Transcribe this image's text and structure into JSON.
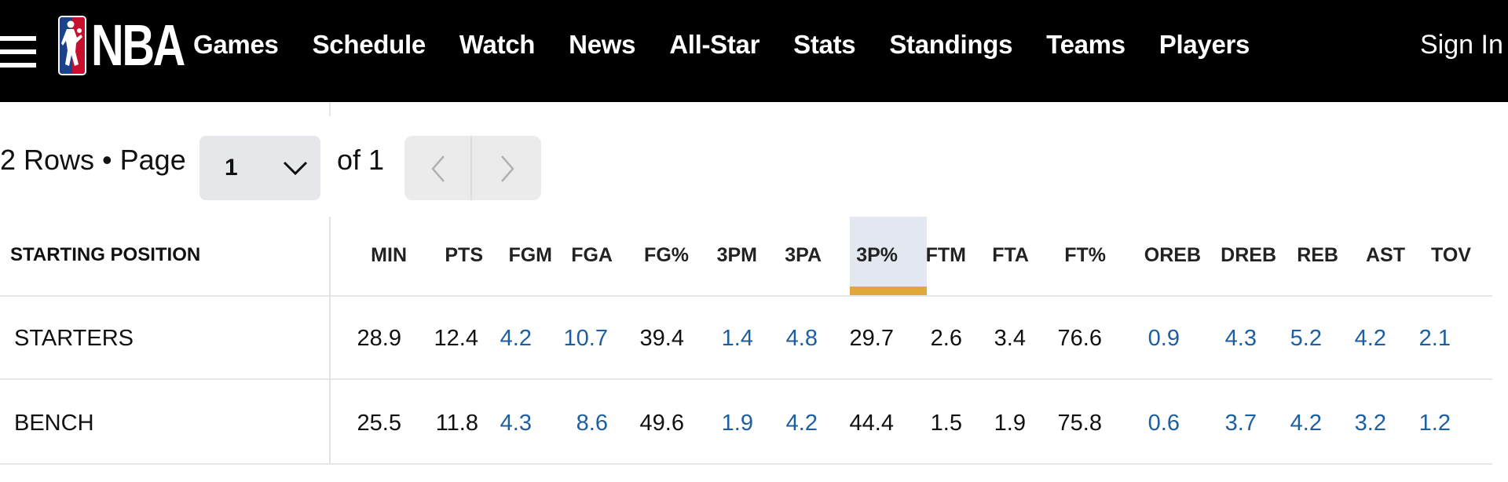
{
  "nav": {
    "logo_text": "NBA",
    "links": [
      "Games",
      "Schedule",
      "Watch",
      "News",
      "All-Star",
      "Stats",
      "Standings",
      "Teams",
      "Players"
    ],
    "sign_in": "Sign In"
  },
  "pagination": {
    "rows_text": "2 Rows • Page",
    "page_value": "1",
    "of_text": "of 1"
  },
  "table": {
    "first_header": "STARTING POSITION",
    "columns": [
      "MIN",
      "PTS",
      "FGM",
      "FGA",
      "FG%",
      "3PM",
      "3PA",
      "3P%",
      "FTM",
      "FTA",
      "FT%",
      "OREB",
      "DREB",
      "REB",
      "AST",
      "TOV"
    ],
    "sorted_column": "3P%",
    "rows": [
      {
        "label": "STARTERS",
        "values": [
          "28.9",
          "12.4",
          "4.2",
          "10.7",
          "39.4",
          "1.4",
          "4.8",
          "29.7",
          "2.6",
          "3.4",
          "76.6",
          "0.9",
          "4.3",
          "5.2",
          "4.2",
          "2.1"
        ]
      },
      {
        "label": "BENCH",
        "values": [
          "25.5",
          "11.8",
          "4.3",
          "8.6",
          "49.6",
          "1.9",
          "4.2",
          "44.4",
          "1.5",
          "1.9",
          "75.8",
          "0.6",
          "3.7",
          "4.2",
          "3.2",
          "1.2"
        ]
      }
    ]
  },
  "colors": {
    "nav_bg": "#000000",
    "link_value": "#1d5fa1",
    "sort_highlight": "#e3e7f0",
    "sort_bar": "#e0a83b"
  }
}
